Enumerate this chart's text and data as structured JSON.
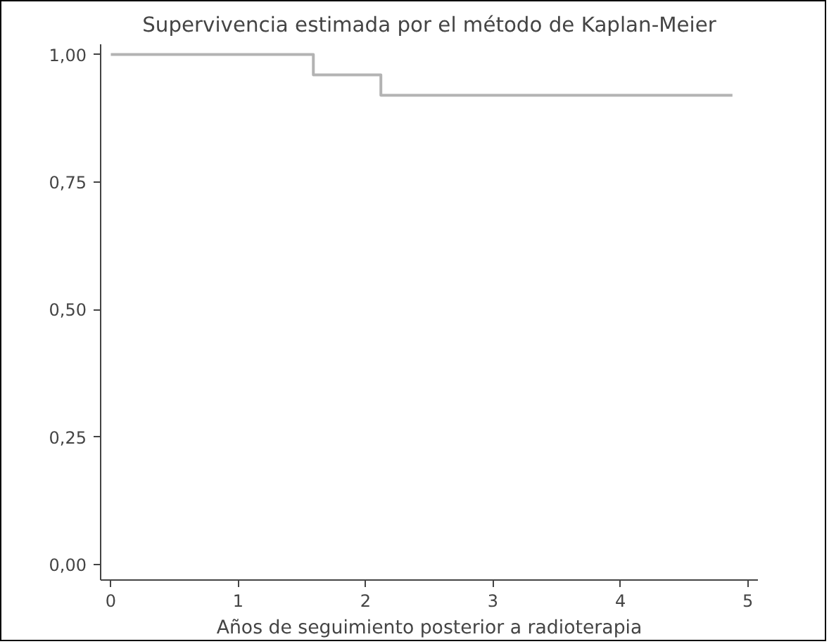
{
  "chart_data": {
    "type": "step",
    "title": "Supervivencia estimada por el método de Kaplan-Meier",
    "xlabel": "Años de seguimiento posterior a radioterapia",
    "x": [
      0,
      1.59,
      2.12,
      4.88
    ],
    "series": [
      {
        "color": "#b3b3b3",
        "values": [
          1.0,
          0.96,
          0.92,
          0.92
        ]
      }
    ],
    "xlim": [
      -0.08,
      5.08
    ],
    "ylim": [
      -0.03,
      1.02
    ],
    "xticks": [
      0,
      1,
      2,
      3,
      4,
      5
    ],
    "yticks": [
      {
        "value": 0,
        "label": "0,00"
      },
      {
        "value": 0.25,
        "label": "0,25"
      },
      {
        "value": 0.5,
        "label": "0,50"
      },
      {
        "value": 0.75,
        "label": "0,75"
      },
      {
        "value": 1,
        "label": "1,00"
      }
    ],
    "grid": false
  }
}
